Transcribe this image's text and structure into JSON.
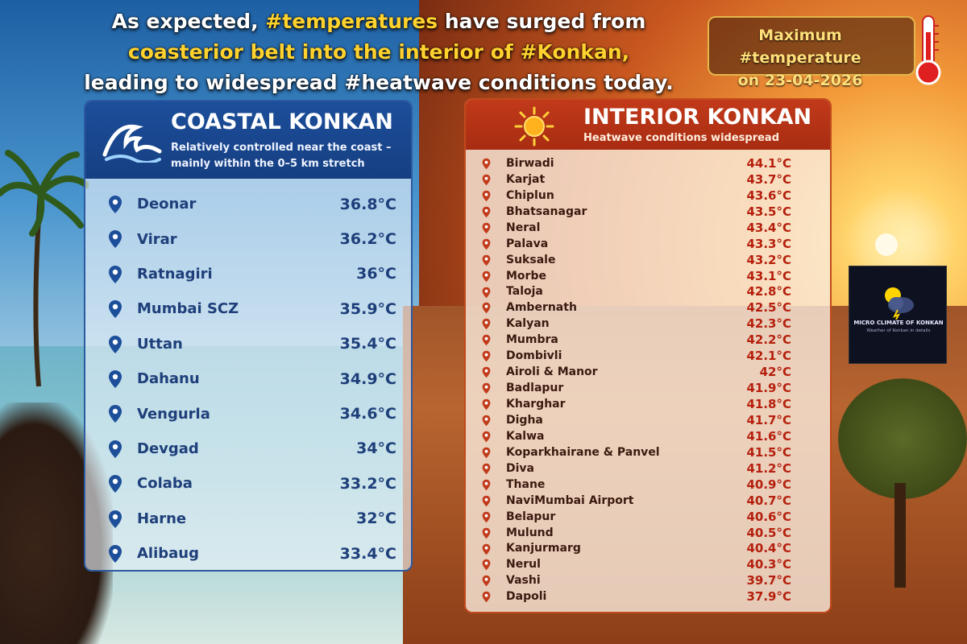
{
  "headline": {
    "line1_part1": "As expected, ",
    "line1_highlight": "#temperatures",
    "line1_part2": " have surged from",
    "line2": "coasterior belt into the interior of #Konkan,",
    "line3": "leading to widespread #heatwave conditions today."
  },
  "date_badge": {
    "line1": "Maximum #temperature",
    "line2": "on 23-04-2026",
    "icon": "thermometer-icon"
  },
  "coastal": {
    "title": "COASTAL KONKAN",
    "subtitle": "Relatively controlled near the coast – mainly within the 0–5 km stretch",
    "icon": "wave-icon",
    "accent": "#1c4e9a",
    "stations": [
      {
        "name": "Deonar",
        "temp": "36.8°C"
      },
      {
        "name": "Virar",
        "temp": "36.2°C"
      },
      {
        "name": "Ratnagiri",
        "temp": "36°C"
      },
      {
        "name": "Mumbai SCZ",
        "temp": "35.9°C"
      },
      {
        "name": "Uttan",
        "temp": "35.4°C"
      },
      {
        "name": "Dahanu",
        "temp": "34.9°C"
      },
      {
        "name": "Vengurla",
        "temp": "34.6°C"
      },
      {
        "name": "Devgad",
        "temp": "34°C"
      },
      {
        "name": "Colaba",
        "temp": "33.2°C"
      },
      {
        "name": "Harne",
        "temp": "32°C"
      },
      {
        "name": "Alibaug",
        "temp": "33.4°C"
      }
    ]
  },
  "interior": {
    "title": "INTERIOR KONKAN",
    "subtitle": "Heatwave conditions widespread",
    "icon": "sun-icon",
    "accent": "#c13a1a",
    "stations": [
      {
        "name": "Birwadi",
        "temp": "44.1°C"
      },
      {
        "name": "Karjat",
        "temp": "43.7°C"
      },
      {
        "name": "Chiplun",
        "temp": "43.6°C"
      },
      {
        "name": "Bhatsanagar",
        "temp": "43.5°C"
      },
      {
        "name": "Neral",
        "temp": "43.4°C"
      },
      {
        "name": "Palava",
        "temp": "43.3°C"
      },
      {
        "name": "Suksale",
        "temp": "43.2°C"
      },
      {
        "name": "Morbe",
        "temp": "43.1°C"
      },
      {
        "name": "Taloja",
        "temp": "42.8°C"
      },
      {
        "name": "Ambernath",
        "temp": "42.5°C"
      },
      {
        "name": "Kalyan",
        "temp": "42.3°C"
      },
      {
        "name": "Mumbra",
        "temp": "42.2°C"
      },
      {
        "name": "Dombivli",
        "temp": "42.1°C"
      },
      {
        "name": "Airoli & Manor",
        "temp": "42°C"
      },
      {
        "name": "Badlapur",
        "temp": "41.9°C"
      },
      {
        "name": "Kharghar",
        "temp": "41.8°C"
      },
      {
        "name": "Digha",
        "temp": "41.7°C"
      },
      {
        "name": "Kalwa",
        "temp": "41.6°C"
      },
      {
        "name": "Koparkhairane & Panvel",
        "temp": "41.5°C"
      },
      {
        "name": "Diva",
        "temp": "41.2°C"
      },
      {
        "name": "Thane",
        "temp": "40.9°C"
      },
      {
        "name": "NaviMumbai Airport",
        "temp": "40.7°C"
      },
      {
        "name": "Belapur",
        "temp": "40.6°C"
      },
      {
        "name": "Mulund",
        "temp": "40.5°C"
      },
      {
        "name": "Kanjurmarg",
        "temp": "40.4°C"
      },
      {
        "name": "Nerul",
        "temp": "40.3°C"
      },
      {
        "name": "Vashi",
        "temp": "39.7°C"
      },
      {
        "name": "Dapoli",
        "temp": "37.9°C"
      }
    ]
  },
  "logo": {
    "title": "MICRO CLIMATE OF KONKAN",
    "tagline": "Weather of Konkan in details",
    "icon": "cloud-sun-icon"
  }
}
